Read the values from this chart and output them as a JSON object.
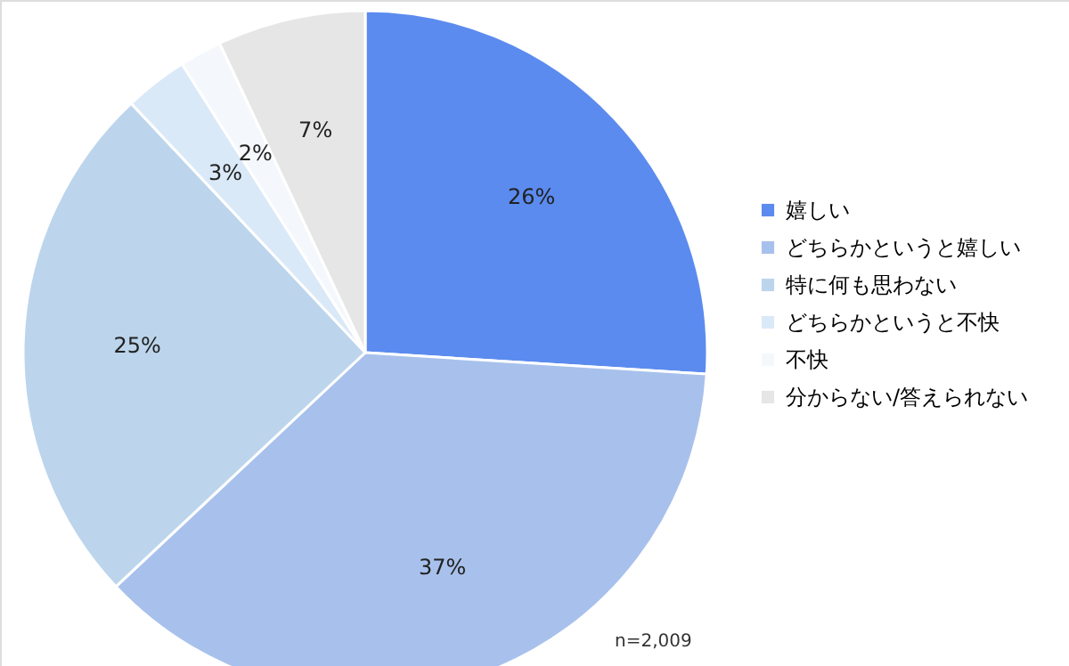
{
  "chart_data": {
    "type": "pie",
    "categories": [
      "嬉しい",
      "どちらかというと嬉しい",
      "特に何も思わない",
      "どちらかというと不快",
      "不快",
      "分からない/答えられない"
    ],
    "values": [
      26,
      37,
      25,
      3,
      2,
      7
    ],
    "value_labels": [
      "26%",
      "37%",
      "25%",
      "3%",
      "2%",
      "7%"
    ],
    "colors": [
      "#5b8bef",
      "#a8c1ec",
      "#bcd5ec",
      "#dae9f8",
      "#f4f8fc",
      "#e6e6e6"
    ],
    "legend": "right",
    "annotations": [
      "n=2,009"
    ]
  }
}
